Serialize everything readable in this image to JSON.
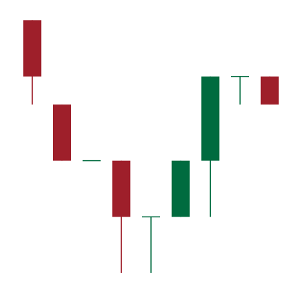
{
  "chart_data": {
    "type": "candlestick",
    "title": "",
    "xlabel": "",
    "ylabel": "",
    "axes_visible": false,
    "grid": false,
    "legend": "none",
    "ylim": [
      0,
      100
    ],
    "colors": {
      "up": "#006b3f",
      "down": "#9e1f2a",
      "background": "#ffffff"
    },
    "candles": [
      {
        "open": 95,
        "high": 95,
        "low": 65,
        "close": 75
      },
      {
        "open": 65,
        "high": 65,
        "low": 45,
        "close": 45
      },
      {
        "open": 45,
        "high": 45,
        "low": 45,
        "close": 45
      },
      {
        "open": 45,
        "high": 45,
        "low": 5,
        "close": 25
      },
      {
        "open": 25,
        "high": 25,
        "low": 5,
        "close": 25
      },
      {
        "open": 25,
        "high": 45,
        "low": 25,
        "close": 45
      },
      {
        "open": 45,
        "high": 75,
        "low": 25,
        "close": 75
      },
      {
        "open": 75,
        "high": 75,
        "low": 65,
        "close": 75
      },
      {
        "open": 75,
        "high": 75,
        "low": 65,
        "close": 65
      }
    ]
  }
}
